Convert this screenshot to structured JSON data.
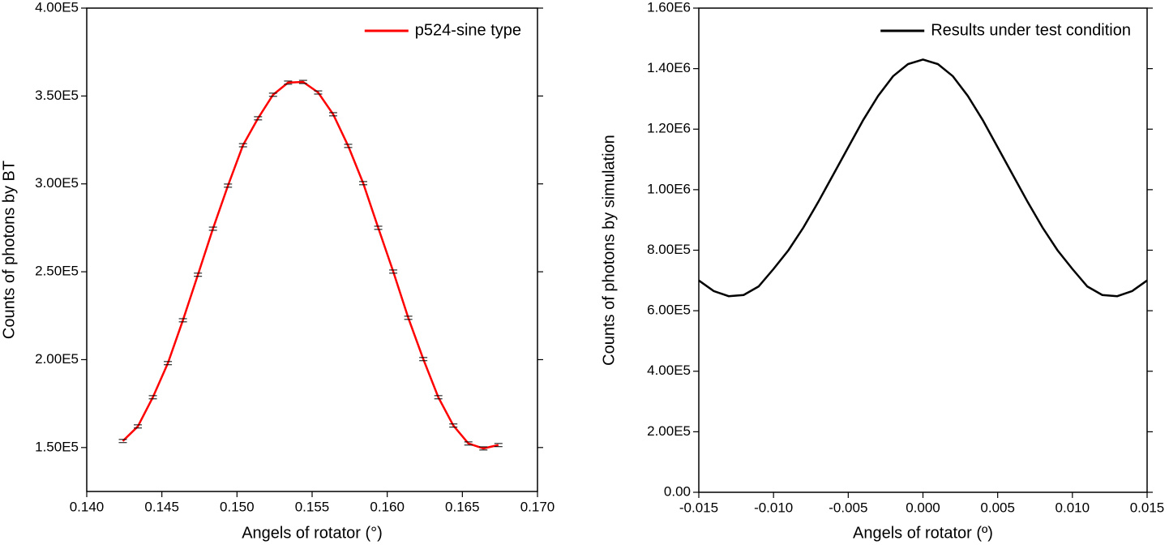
{
  "chart_data": [
    {
      "type": "line",
      "x_label": "Angels of rotator (°)",
      "y_label": "Counts of photons by BT",
      "x": [
        0.1424,
        0.1434,
        0.1444,
        0.1454,
        0.1464,
        0.1474,
        0.1484,
        0.1494,
        0.1504,
        0.1514,
        0.1524,
        0.1534,
        0.1544,
        0.1554,
        0.1564,
        0.1574,
        0.1584,
        0.1594,
        0.1604,
        0.1614,
        0.1624,
        0.1634,
        0.1644,
        0.1654,
        0.1664,
        0.1674
      ],
      "series": [
        {
          "name": "p524-sine type",
          "color": "#ff0000",
          "values": [
            153700,
            162000,
            178600,
            198000,
            222400,
            248300,
            274500,
            299000,
            322000,
            337300,
            350700,
            357600,
            358000,
            352000,
            339600,
            321600,
            300400,
            275000,
            250100,
            223800,
            200300,
            178600,
            162500,
            152300,
            149500,
            151400
          ],
          "errors": [
            900,
            900,
            900,
            900,
            900,
            900,
            900,
            900,
            900,
            900,
            900,
            900,
            900,
            900,
            900,
            900,
            900,
            900,
            900,
            900,
            900,
            900,
            900,
            900,
            900,
            900
          ]
        }
      ],
      "xlim": [
        0.14,
        0.17
      ],
      "xticks": [
        {
          "value": 0.14,
          "label": "0.140"
        },
        {
          "value": 0.145,
          "label": "0.145"
        },
        {
          "value": 0.15,
          "label": "0.150"
        },
        {
          "value": 0.155,
          "label": "0.155"
        },
        {
          "value": 0.16,
          "label": "0.160"
        },
        {
          "value": 0.165,
          "label": "0.165"
        },
        {
          "value": 0.17,
          "label": "0.170"
        }
      ],
      "ylim": [
        125000,
        400000
      ],
      "yticks": [
        {
          "value": 150000,
          "label": "1.50E5"
        },
        {
          "value": 200000,
          "label": "2.00E5"
        },
        {
          "value": 250000,
          "label": "2.50E5"
        },
        {
          "value": 300000,
          "label": "3.00E5"
        },
        {
          "value": 350000,
          "label": "3.50E5"
        },
        {
          "value": 400000,
          "label": "4.00E5"
        }
      ],
      "legend": "upper right"
    },
    {
      "type": "line",
      "x_label": "Angels of rotator (º)",
      "y_label": "Counts of photons by simulation",
      "x": [
        -0.015,
        -0.014,
        -0.013,
        -0.012,
        -0.011,
        -0.01,
        -0.009,
        -0.008,
        -0.007,
        -0.006,
        -0.005,
        -0.004,
        -0.003,
        -0.002,
        -0.001,
        0,
        0.001,
        0.002,
        0.003,
        0.004,
        0.005,
        0.006,
        0.007,
        0.008,
        0.009,
        0.01,
        0.011,
        0.012,
        0.013,
        0.014,
        0.015
      ],
      "series": [
        {
          "name": "Results under test condition",
          "color": "#000000",
          "values": [
            700000,
            665000,
            648000,
            652000,
            680000,
            738000,
            800000,
            875000,
            960000,
            1050000,
            1140000,
            1230000,
            1310000,
            1375000,
            1415000,
            1430000,
            1415000,
            1375000,
            1310000,
            1230000,
            1140000,
            1050000,
            960000,
            875000,
            800000,
            738000,
            680000,
            652000,
            648000,
            665000,
            700000
          ]
        }
      ],
      "xlim": [
        -0.015,
        0.015
      ],
      "xticks": [
        -0.015,
        {
          "value": -0.01,
          "label": "-0.010"
        },
        -0.005,
        {
          "value": 0,
          "label": "0.000"
        },
        0.005,
        {
          "value": 0.01,
          "label": "0.010"
        },
        0.015
      ],
      "ylim": [
        0,
        1600000
      ],
      "yticks": [
        {
          "value": 0,
          "label": "0.00"
        },
        {
          "value": 200000,
          "label": "2.00E5"
        },
        {
          "value": 400000,
          "label": "4.00E5"
        },
        {
          "value": 600000,
          "label": "6.00E5"
        },
        {
          "value": 800000,
          "label": "8.00E5"
        },
        {
          "value": 1000000,
          "label": "1.00E6"
        },
        {
          "value": 1200000,
          "label": "1.20E6"
        },
        {
          "value": 1400000,
          "label": "1.40E6"
        },
        {
          "value": 1600000,
          "label": "1.60E6"
        }
      ],
      "legend": "upper right"
    }
  ]
}
